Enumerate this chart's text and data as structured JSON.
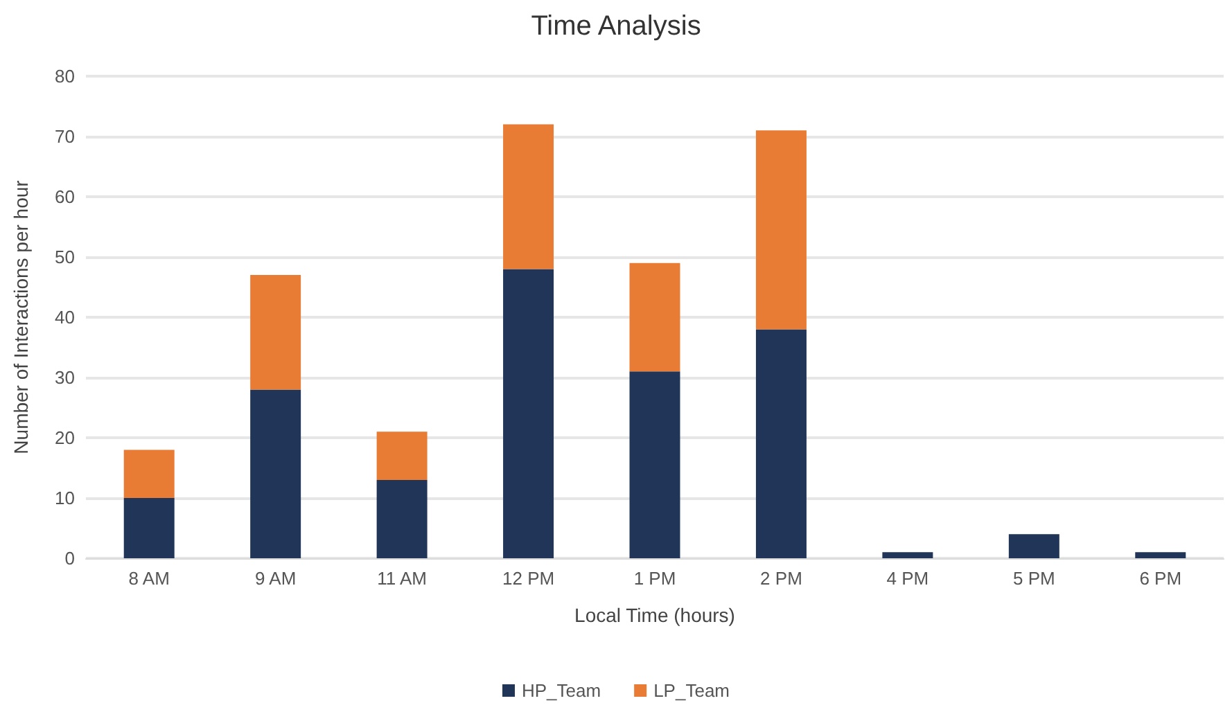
{
  "chart_data": {
    "type": "bar",
    "title": "Time Analysis",
    "xlabel": "Local Time (hours)",
    "ylabel": "Number of Interactions per hour",
    "categories": [
      "8 AM",
      "9 AM",
      "11 AM",
      "12 PM",
      "1 PM",
      "2 PM",
      "4 PM",
      "5 PM",
      "6 PM"
    ],
    "series": [
      {
        "name": "HP_Team",
        "color": "#203558",
        "values": [
          10,
          28,
          13,
          48,
          31,
          38,
          1,
          4,
          1
        ]
      },
      {
        "name": "LP_Team",
        "color": "#e97c35",
        "values": [
          8,
          19,
          8,
          24,
          18,
          33,
          0,
          0,
          0
        ]
      }
    ],
    "stacked": true,
    "ylim": [
      0,
      80
    ],
    "yticks": [
      0,
      10,
      20,
      30,
      40,
      50,
      60,
      70,
      80
    ],
    "grid": "y",
    "legend": "bottom"
  }
}
